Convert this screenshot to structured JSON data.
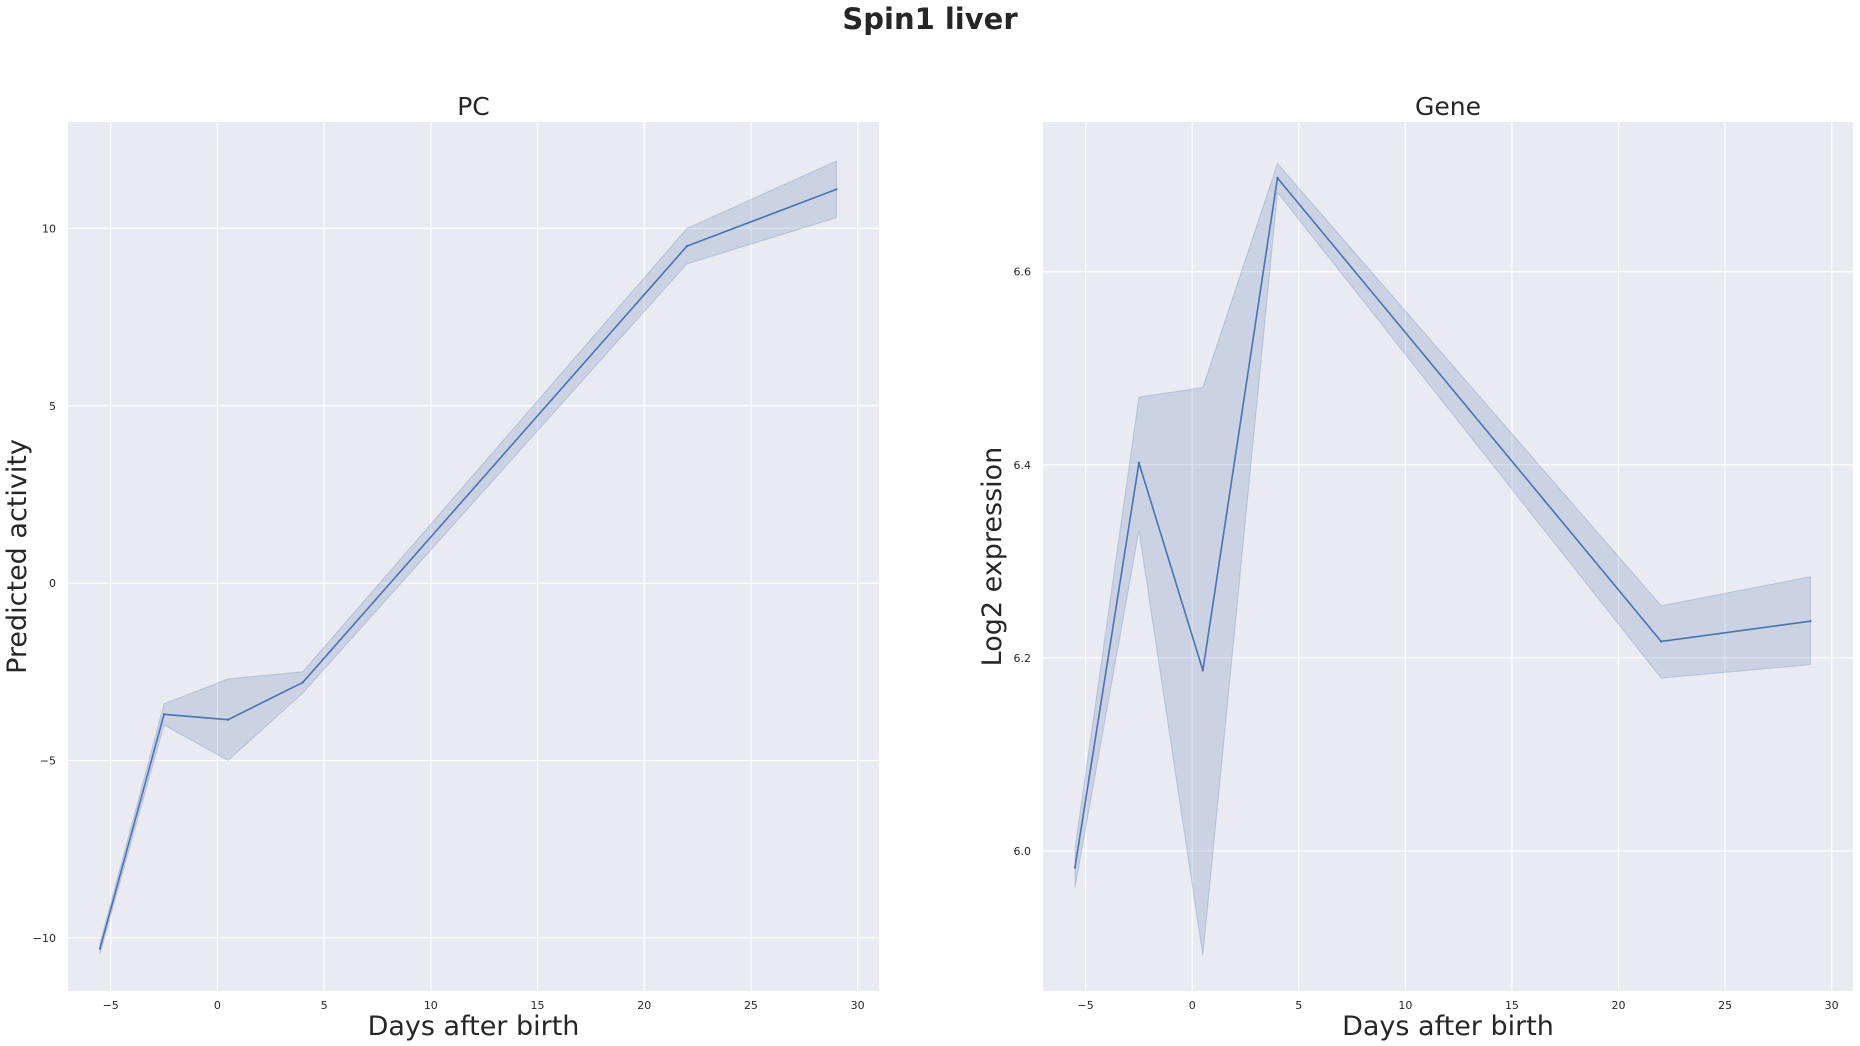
{
  "figure": {
    "title": "Spin1 liver",
    "background": "#ffffff",
    "plot_background": "#eaeaf2",
    "grid_color": "#ffffff",
    "line_color": "#4c72b0"
  },
  "chart_data": [
    {
      "type": "line",
      "title": "PC",
      "xlabel": "Days after birth",
      "ylabel": "Predicted activity",
      "xlim": [
        -7,
        31
      ],
      "ylim": [
        -11.5,
        13
      ],
      "xticks": [
        -5,
        0,
        5,
        10,
        15,
        20,
        25,
        30
      ],
      "yticks": [
        -10,
        -5,
        0,
        5,
        10
      ],
      "grid": true,
      "series": [
        {
          "x": [
            -5.5,
            -2.5,
            0.5,
            4,
            22,
            29
          ],
          "y": [
            -10.3,
            -3.7,
            -3.85,
            -2.8,
            9.5,
            11.1
          ],
          "ci_lower": [
            -10.45,
            -4.0,
            -5.0,
            -3.1,
            9.0,
            10.3
          ],
          "ci_upper": [
            -10.15,
            -3.4,
            -2.7,
            -2.5,
            10.0,
            11.9
          ]
        }
      ]
    },
    {
      "type": "line",
      "title": "Gene",
      "xlabel": "Days after birth",
      "ylabel": "Log2 expression",
      "xlim": [
        -7,
        31
      ],
      "ylim": [
        5.855,
        6.755
      ],
      "xticks": [
        -5,
        0,
        5,
        10,
        15,
        20,
        25,
        30
      ],
      "yticks": [
        6.0,
        6.2,
        6.4,
        6.6
      ],
      "grid": true,
      "series": [
        {
          "x": [
            -5.5,
            -2.5,
            0.5,
            4,
            22,
            29
          ],
          "y": [
            5.983,
            6.402,
            6.187,
            6.697,
            6.217,
            6.238
          ],
          "ci_lower": [
            5.962,
            6.332,
            5.892,
            6.682,
            6.179,
            6.193
          ],
          "ci_upper": [
            6.002,
            6.47,
            6.48,
            6.712,
            6.254,
            6.284
          ]
        }
      ]
    }
  ]
}
